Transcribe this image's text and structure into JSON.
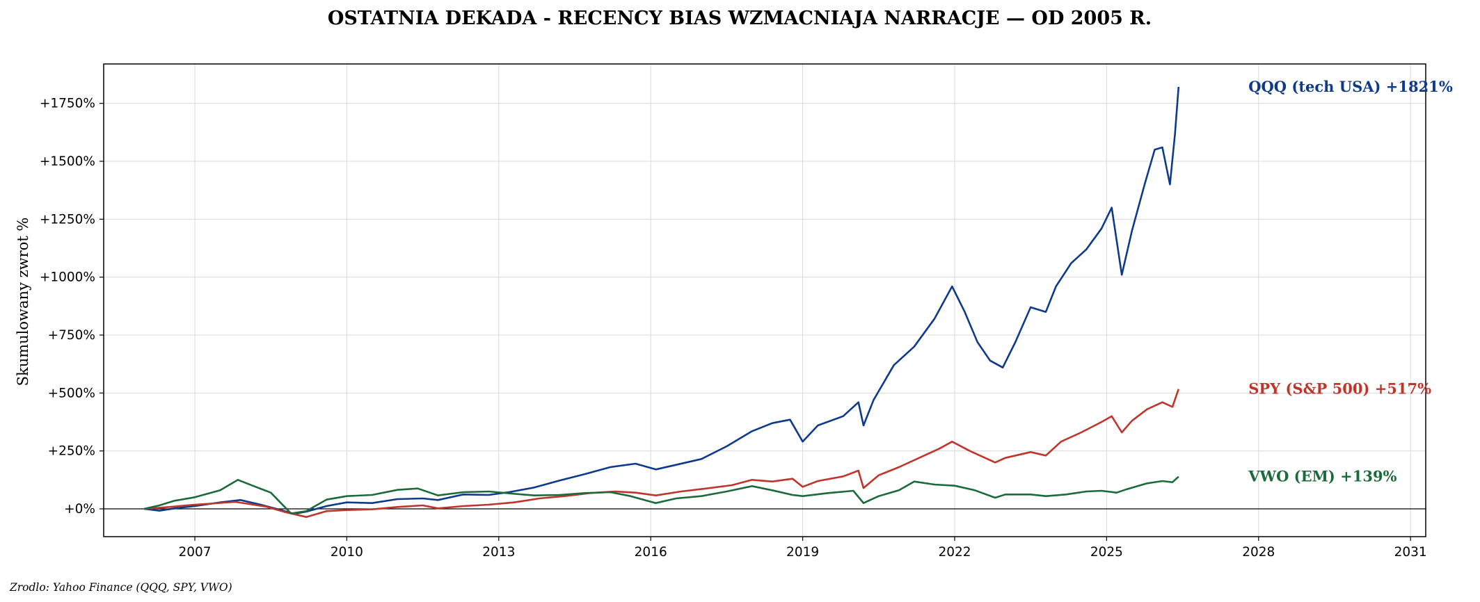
{
  "chart_data": {
    "type": "line",
    "title": "OSTATNIA DEKADA - RECENCY BIAS WZMACNIAJA NARRACJE — OD 2005 R.",
    "ylabel": "Skumulowany zwrot %",
    "xlabel": "",
    "xlim": [
      2005.2,
      2031.3
    ],
    "ylim": [
      -120,
      1920
    ],
    "x_ticks": [
      2007,
      2010,
      2013,
      2016,
      2019,
      2022,
      2025,
      2028,
      2031
    ],
    "x_tick_labels": [
      "2007",
      "2010",
      "2013",
      "2016",
      "2019",
      "2022",
      "2025",
      "2028",
      "2031"
    ],
    "y_ticks": [
      0,
      250,
      500,
      750,
      1000,
      1250,
      1500,
      1750
    ],
    "y_tick_labels": [
      "+0%",
      "+250%",
      "+500%",
      "+750%",
      "+1000%",
      "+1250%",
      "+1500%",
      "+1750%"
    ],
    "grid": true,
    "zero_line": true,
    "series": [
      {
        "name": "QQQ (tech USA)",
        "end_label": "QQQ (tech USA)  +1821%",
        "color": "#0d3a8c",
        "points": [
          [
            2006.0,
            0
          ],
          [
            2006.3,
            -8
          ],
          [
            2006.6,
            2
          ],
          [
            2007.0,
            12
          ],
          [
            2007.5,
            28
          ],
          [
            2007.9,
            38
          ],
          [
            2008.3,
            18
          ],
          [
            2008.7,
            -5
          ],
          [
            2008.95,
            -22
          ],
          [
            2009.2,
            -12
          ],
          [
            2009.6,
            12
          ],
          [
            2010.0,
            28
          ],
          [
            2010.5,
            25
          ],
          [
            2011.0,
            42
          ],
          [
            2011.5,
            45
          ],
          [
            2011.8,
            38
          ],
          [
            2012.3,
            62
          ],
          [
            2012.8,
            60
          ],
          [
            2013.2,
            72
          ],
          [
            2013.7,
            92
          ],
          [
            2014.2,
            122
          ],
          [
            2014.7,
            150
          ],
          [
            2015.2,
            180
          ],
          [
            2015.7,
            195
          ],
          [
            2016.1,
            170
          ],
          [
            2016.5,
            190
          ],
          [
            2017.0,
            215
          ],
          [
            2017.5,
            270
          ],
          [
            2018.0,
            335
          ],
          [
            2018.4,
            370
          ],
          [
            2018.75,
            385
          ],
          [
            2019.0,
            290
          ],
          [
            2019.3,
            360
          ],
          [
            2019.8,
            400
          ],
          [
            2020.1,
            460
          ],
          [
            2020.2,
            360
          ],
          [
            2020.4,
            470
          ],
          [
            2020.8,
            620
          ],
          [
            2021.2,
            700
          ],
          [
            2021.6,
            820
          ],
          [
            2021.95,
            960
          ],
          [
            2022.2,
            850
          ],
          [
            2022.45,
            720
          ],
          [
            2022.7,
            640
          ],
          [
            2022.95,
            610
          ],
          [
            2023.2,
            720
          ],
          [
            2023.5,
            870
          ],
          [
            2023.8,
            850
          ],
          [
            2024.0,
            960
          ],
          [
            2024.3,
            1060
          ],
          [
            2024.6,
            1120
          ],
          [
            2024.9,
            1210
          ],
          [
            2025.1,
            1300
          ],
          [
            2025.3,
            1010
          ],
          [
            2025.5,
            1200
          ],
          [
            2025.75,
            1400
          ],
          [
            2025.95,
            1550
          ],
          [
            2026.1,
            1560
          ],
          [
            2026.25,
            1400
          ],
          [
            2026.35,
            1620
          ],
          [
            2026.42,
            1821
          ]
        ]
      },
      {
        "name": "SPY (S&P 500)",
        "end_label": "SPY (S&P 500)  +517%",
        "color": "#c0352b",
        "points": [
          [
            2006.0,
            0
          ],
          [
            2006.5,
            8
          ],
          [
            2007.0,
            18
          ],
          [
            2007.8,
            30
          ],
          [
            2008.4,
            10
          ],
          [
            2008.8,
            -15
          ],
          [
            2009.2,
            -35
          ],
          [
            2009.6,
            -10
          ],
          [
            2010.0,
            -5
          ],
          [
            2010.5,
            -2
          ],
          [
            2011.0,
            8
          ],
          [
            2011.5,
            15
          ],
          [
            2011.8,
            2
          ],
          [
            2012.3,
            12
          ],
          [
            2012.8,
            18
          ],
          [
            2013.3,
            28
          ],
          [
            2013.8,
            45
          ],
          [
            2014.3,
            55
          ],
          [
            2014.8,
            68
          ],
          [
            2015.3,
            75
          ],
          [
            2015.7,
            70
          ],
          [
            2016.1,
            58
          ],
          [
            2016.6,
            75
          ],
          [
            2017.1,
            88
          ],
          [
            2017.6,
            102
          ],
          [
            2018.0,
            125
          ],
          [
            2018.4,
            118
          ],
          [
            2018.8,
            130
          ],
          [
            2019.0,
            95
          ],
          [
            2019.3,
            120
          ],
          [
            2019.8,
            140
          ],
          [
            2020.1,
            165
          ],
          [
            2020.2,
            90
          ],
          [
            2020.5,
            145
          ],
          [
            2020.9,
            180
          ],
          [
            2021.3,
            220
          ],
          [
            2021.7,
            260
          ],
          [
            2021.95,
            290
          ],
          [
            2022.3,
            250
          ],
          [
            2022.6,
            220
          ],
          [
            2022.8,
            200
          ],
          [
            2023.0,
            220
          ],
          [
            2023.5,
            245
          ],
          [
            2023.8,
            230
          ],
          [
            2024.1,
            290
          ],
          [
            2024.5,
            330
          ],
          [
            2024.9,
            375
          ],
          [
            2025.1,
            400
          ],
          [
            2025.3,
            330
          ],
          [
            2025.5,
            380
          ],
          [
            2025.8,
            430
          ],
          [
            2026.1,
            460
          ],
          [
            2026.3,
            440
          ],
          [
            2026.42,
            517
          ]
        ]
      },
      {
        "name": "VWO (EM)",
        "end_label": "VWO (EM)  +139%",
        "color": "#1b6b3a",
        "points": [
          [
            2006.0,
            0
          ],
          [
            2006.3,
            15
          ],
          [
            2006.6,
            35
          ],
          [
            2007.0,
            50
          ],
          [
            2007.5,
            80
          ],
          [
            2007.85,
            125
          ],
          [
            2008.2,
            95
          ],
          [
            2008.5,
            70
          ],
          [
            2008.9,
            -20
          ],
          [
            2009.2,
            -10
          ],
          [
            2009.6,
            40
          ],
          [
            2010.0,
            55
          ],
          [
            2010.5,
            60
          ],
          [
            2011.0,
            82
          ],
          [
            2011.4,
            88
          ],
          [
            2011.8,
            58
          ],
          [
            2012.3,
            72
          ],
          [
            2012.8,
            75
          ],
          [
            2013.3,
            65
          ],
          [
            2013.7,
            58
          ],
          [
            2014.2,
            60
          ],
          [
            2014.7,
            68
          ],
          [
            2015.2,
            72
          ],
          [
            2015.6,
            55
          ],
          [
            2016.1,
            25
          ],
          [
            2016.5,
            45
          ],
          [
            2017.0,
            55
          ],
          [
            2017.5,
            75
          ],
          [
            2018.0,
            98
          ],
          [
            2018.4,
            80
          ],
          [
            2018.8,
            60
          ],
          [
            2019.0,
            55
          ],
          [
            2019.5,
            68
          ],
          [
            2020.0,
            78
          ],
          [
            2020.2,
            25
          ],
          [
            2020.5,
            55
          ],
          [
            2020.9,
            80
          ],
          [
            2021.2,
            118
          ],
          [
            2021.6,
            105
          ],
          [
            2022.0,
            100
          ],
          [
            2022.4,
            80
          ],
          [
            2022.8,
            48
          ],
          [
            2023.0,
            62
          ],
          [
            2023.5,
            62
          ],
          [
            2023.8,
            55
          ],
          [
            2024.2,
            62
          ],
          [
            2024.6,
            75
          ],
          [
            2024.9,
            78
          ],
          [
            2025.2,
            70
          ],
          [
            2025.4,
            85
          ],
          [
            2025.8,
            110
          ],
          [
            2026.1,
            120
          ],
          [
            2026.3,
            115
          ],
          [
            2026.42,
            139
          ]
        ]
      }
    ]
  },
  "source": "Zrodlo: Yahoo Finance (QQQ, SPY, VWO)"
}
